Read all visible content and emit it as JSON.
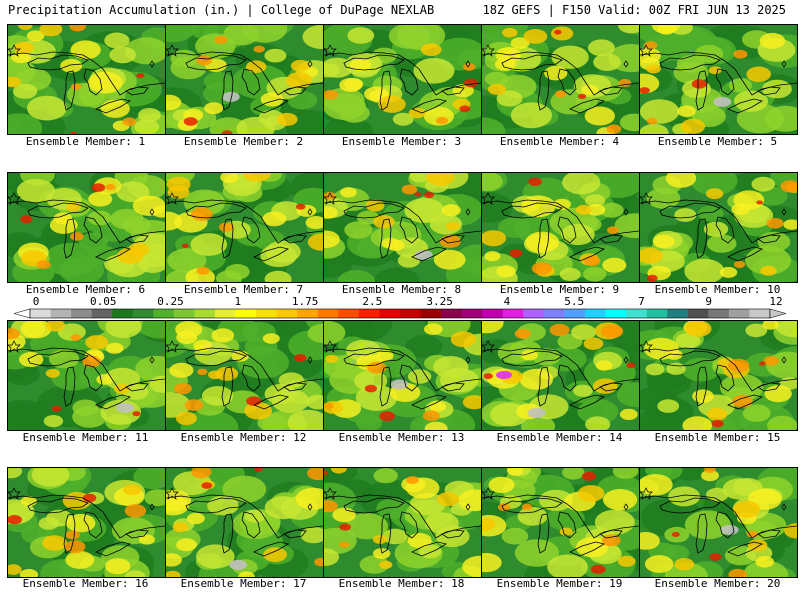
{
  "header": {
    "title_left": "Precipitation Accumulation (in.) | College of DuPage NEXLAB",
    "title_right": "18Z GEFS | F150 Valid: 00Z FRI JUN 13 2025"
  },
  "colorbar": {
    "labels": [
      "0",
      "0.05",
      "0.25",
      "1",
      "1.75",
      "2.5",
      "3.25",
      "4",
      "5.5",
      "7",
      "9",
      "12"
    ],
    "colors": [
      "#dcdcdc",
      "#b4b4b4",
      "#8c8c8c",
      "#646464",
      "#1a7a1a",
      "#2e8b2e",
      "#4fb02a",
      "#7cc830",
      "#a8dc32",
      "#e6f030",
      "#ffff00",
      "#f8e000",
      "#ffc800",
      "#ffa500",
      "#ff7800",
      "#ff4c00",
      "#ff1e00",
      "#e60000",
      "#c80000",
      "#9b0000",
      "#8b004a",
      "#a0007a",
      "#c000b0",
      "#e020e0",
      "#b060ff",
      "#8080ff",
      "#50a0ff",
      "#20d0ff",
      "#00ffff",
      "#40e0d0",
      "#20c0a0",
      "#208080",
      "#505050",
      "#787878",
      "#a0a0a0",
      "#c8c8c8"
    ]
  },
  "panels": [
    {
      "caption": "Ensemble Member: 1"
    },
    {
      "caption": "Ensemble Member: 2"
    },
    {
      "caption": "Ensemble Member: 3"
    },
    {
      "caption": "Ensemble Member: 4"
    },
    {
      "caption": "Ensemble Member: 5"
    },
    {
      "caption": "Ensemble Member: 6"
    },
    {
      "caption": "Ensemble Member: 7"
    },
    {
      "caption": "Ensemble Member: 8"
    },
    {
      "caption": "Ensemble Member: 9"
    },
    {
      "caption": "Ensemble Member: 10"
    },
    {
      "caption": "Ensemble Member: 11"
    },
    {
      "caption": "Ensemble Member: 12"
    },
    {
      "caption": "Ensemble Member: 13"
    },
    {
      "caption": "Ensemble Member: 14"
    },
    {
      "caption": "Ensemble Member: 15"
    },
    {
      "caption": "Ensemble Member: 16"
    },
    {
      "caption": "Ensemble Member: 17"
    },
    {
      "caption": "Ensemble Member: 18"
    },
    {
      "caption": "Ensemble Member: 19"
    },
    {
      "caption": "Ensemble Member: 20"
    }
  ]
}
